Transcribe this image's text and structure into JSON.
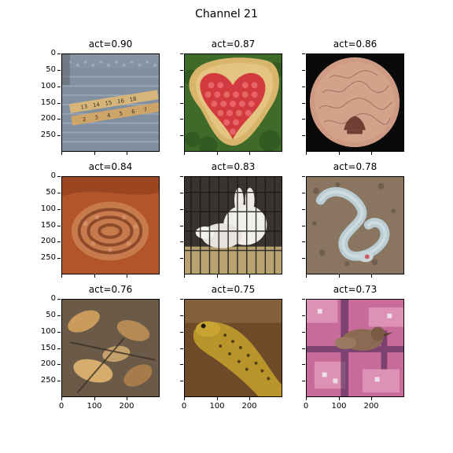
{
  "figure": {
    "title": "Channel 21"
  },
  "axes": {
    "y_ticks": [
      "0",
      "50",
      "100",
      "150",
      "200",
      "250"
    ],
    "x_ticks": [
      "0",
      "100",
      "200"
    ]
  },
  "panels": [
    {
      "title": "act=0.90",
      "subject": "folding ruler on metal grate",
      "colors": {
        "bg": "#7d8ea0",
        "accent": "#c9a46a",
        "detail": "#4a4038"
      }
    },
    {
      "title": "act=0.87",
      "subject": "heart of red candies on wood slice on grass",
      "colors": {
        "bg": "#3f6b2a",
        "accent": "#d9b36c",
        "detail": "#d23a3f"
      }
    },
    {
      "title": "act=0.86",
      "subject": "engraved copper disc on black",
      "colors": {
        "bg": "#0a0a0a",
        "accent": "#d4a08a",
        "detail": "#7a4a3c"
      }
    },
    {
      "title": "act=0.84",
      "subject": "coiled snake on orange sand",
      "colors": {
        "bg": "#b3542a",
        "accent": "#c77a4c",
        "detail": "#7a3a20"
      }
    },
    {
      "title": "act=0.83",
      "subject": "white rabbit in cage",
      "colors": {
        "bg": "#3a3430",
        "accent": "#f1efec",
        "detail": "#b8a270"
      }
    },
    {
      "title": "act=0.78",
      "subject": "pale snake on gravel",
      "colors": {
        "bg": "#8a7560",
        "accent": "#b9cdd3",
        "detail": "#5b4d40"
      }
    },
    {
      "title": "act=0.76",
      "subject": "fallen leaves",
      "colors": {
        "bg": "#6b5a48",
        "accent": "#c89b5a",
        "detail": "#3b3228"
      }
    },
    {
      "title": "act=0.75",
      "subject": "spotted newt",
      "colors": {
        "bg": "#6e4a28",
        "accent": "#b8942a",
        "detail": "#3a2a14"
      }
    },
    {
      "title": "act=0.73",
      "subject": "bird on pink patterned fabric",
      "colors": {
        "bg": "#c86a9a",
        "accent": "#8a6a52",
        "detail": "#3a2a3a"
      }
    }
  ]
}
